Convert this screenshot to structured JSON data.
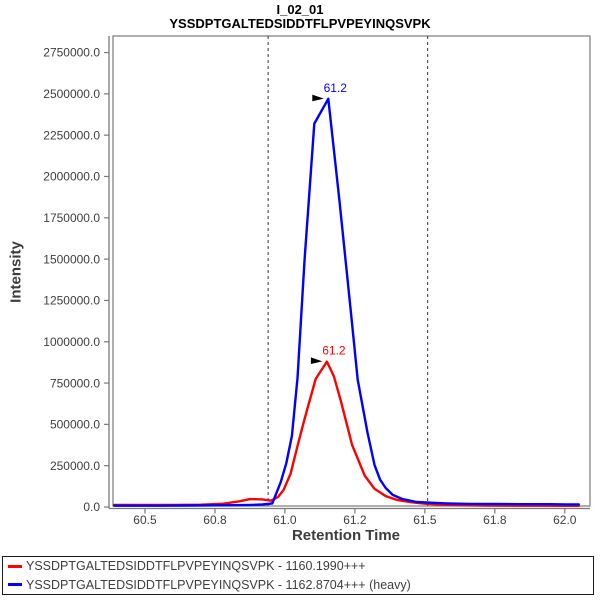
{
  "title": {
    "line1": "I_02_01",
    "line2": "YSSDPTGALTEDSIDDTFLPVPEYINQSVPK"
  },
  "axes": {
    "x_title": "Retention Time",
    "y_title": "Intensity",
    "x_ticks": [
      {
        "v": 60.5,
        "label": "60.5"
      },
      {
        "v": 60.75,
        "label": "60.8"
      },
      {
        "v": 61.0,
        "label": "61.0"
      },
      {
        "v": 61.25,
        "label": "61.2"
      },
      {
        "v": 61.5,
        "label": "61.5"
      },
      {
        "v": 61.75,
        "label": "61.8"
      },
      {
        "v": 62.0,
        "label": "62.0"
      }
    ],
    "y_ticks": [
      {
        "v": 0,
        "label": "0.0"
      },
      {
        "v": 250000,
        "label": "250000.0"
      },
      {
        "v": 500000,
        "label": "500000.0"
      },
      {
        "v": 750000,
        "label": "750000.0"
      },
      {
        "v": 1000000,
        "label": "1000000.0"
      },
      {
        "v": 1250000,
        "label": "1250000.0"
      },
      {
        "v": 1500000,
        "label": "1500000.0"
      },
      {
        "v": 1750000,
        "label": "1750000.0"
      },
      {
        "v": 2000000,
        "label": "2000000.0"
      },
      {
        "v": 2250000,
        "label": "2250000.0"
      },
      {
        "v": 2500000,
        "label": "2500000.0"
      },
      {
        "v": 2750000,
        "label": "2750000.0"
      }
    ]
  },
  "chart_data": {
    "type": "line",
    "title": "I_02_01",
    "subtitle": "YSSDPTGALTEDSIDDTFLPVPEYINQSVPK",
    "xlabel": "Retention Time",
    "ylabel": "Intensity",
    "xlim": [
      60.375,
      62.09
    ],
    "ylim": [
      0,
      2850000
    ],
    "grid": false,
    "legend_position": "bottom",
    "peak_boundaries": {
      "start": 60.94,
      "end": 61.51,
      "style": "dashed"
    },
    "series": [
      {
        "name": "YSSDPTGALTEDSIDDTFLPVPEYINQSVPK - 1160.1990+++",
        "isotope_label": "light",
        "color": "#ff0000",
        "peak_annotation": {
          "text": "61.2",
          "rt": 61.15,
          "intensity": 880000
        },
        "x": [
          60.39,
          60.5,
          60.6,
          60.7,
          60.78,
          60.84,
          60.875,
          60.92,
          60.95,
          60.975,
          60.995,
          61.02,
          61.045,
          61.065,
          61.08,
          61.11,
          61.15,
          61.175,
          61.2,
          61.24,
          61.285,
          61.32,
          61.36,
          61.4,
          61.45,
          61.5,
          61.56,
          61.63,
          61.72,
          61.82,
          61.92,
          62.0,
          62.05
        ],
        "y": [
          12000,
          12000,
          12000,
          14000,
          20000,
          35000,
          48000,
          46000,
          38000,
          60000,
          103000,
          200000,
          369000,
          500000,
          593000,
          775000,
          880000,
          790000,
          640000,
          375000,
          190000,
          110000,
          66000,
          43000,
          29000,
          20000,
          14000,
          11000,
          9000,
          8000,
          8000,
          7000,
          7000
        ]
      },
      {
        "name": "YSSDPTGALTEDSIDDTFLPVPEYINQSVPK - 1162.8704+++ (heavy)",
        "isotope_label": "heavy",
        "color": "#0000ff",
        "peak_annotation": {
          "text": "61.2",
          "rt": 61.155,
          "intensity": 2470000
        },
        "x": [
          60.39,
          60.47,
          60.56,
          60.65,
          60.74,
          60.82,
          60.88,
          60.92,
          60.955,
          60.985,
          61.005,
          61.025,
          61.045,
          61.07,
          61.105,
          61.155,
          61.195,
          61.235,
          61.26,
          61.295,
          61.32,
          61.34,
          61.36,
          61.385,
          61.42,
          61.47,
          61.52,
          61.58,
          61.66,
          61.75,
          61.85,
          61.95,
          62.0,
          62.05
        ],
        "y": [
          8000,
          8000,
          8000,
          9000,
          10000,
          11000,
          13000,
          15000,
          22000,
          150000,
          265000,
          430000,
          780000,
          1490000,
          2320000,
          2470000,
          1850000,
          1190000,
          770000,
          450000,
          255000,
          165000,
          115000,
          73000,
          48000,
          30000,
          26000,
          22000,
          19000,
          18000,
          17000,
          17000,
          16000,
          16000
        ]
      }
    ]
  },
  "legend": {
    "items": [
      {
        "label": "YSSDPTGALTEDSIDDTFLPVPEYINQSVPK - 1160.1990+++",
        "color": "#ff0000"
      },
      {
        "label": "YSSDPTGALTEDSIDDTFLPVPEYINQSVPK - 1162.8704+++ (heavy)",
        "color": "#0000ff"
      }
    ]
  },
  "colors": {
    "axis_line": "#7a7a7a",
    "tick_text": "#3d3d3d",
    "title_text": "#000000",
    "boundary_line": "#333333",
    "annotation_arrow": "#000000",
    "background": "#ffffff"
  }
}
